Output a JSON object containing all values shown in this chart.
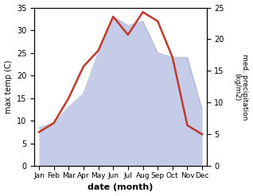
{
  "months": [
    "Jan",
    "Feb",
    "Mar",
    "Apr",
    "May",
    "Jun",
    "Jul",
    "Aug",
    "Sep",
    "Oct",
    "Nov",
    "Dec"
  ],
  "temperature": [
    7.5,
    9.5,
    15.0,
    22.0,
    25.5,
    33.0,
    29.0,
    34.0,
    32.0,
    24.0,
    9.0,
    7.0
  ],
  "precipitation": [
    8.5,
    9.5,
    13.0,
    16.0,
    25.0,
    33.0,
    31.0,
    32.0,
    25.0,
    24.0,
    24.0,
    12.5
  ],
  "temp_color": "#c0392b",
  "precip_fill_color": "#c5cce8",
  "precip_edge_color": "#9aa4cc",
  "xlabel": "date (month)",
  "ylabel_left": "max temp (C)",
  "ylabel_right": "med. precipitation\n(kg/m2)",
  "ylim_left": [
    0,
    35
  ],
  "ylim_right": [
    0,
    25
  ],
  "yticks_left": [
    0,
    5,
    10,
    15,
    20,
    25,
    30,
    35
  ],
  "yticks_right": [
    0,
    5,
    10,
    15,
    20,
    25
  ],
  "right_tick_positions_in_left_scale": [
    0,
    7,
    14,
    21,
    28,
    35
  ],
  "figsize": [
    3.18,
    2.47
  ],
  "dpi": 100
}
